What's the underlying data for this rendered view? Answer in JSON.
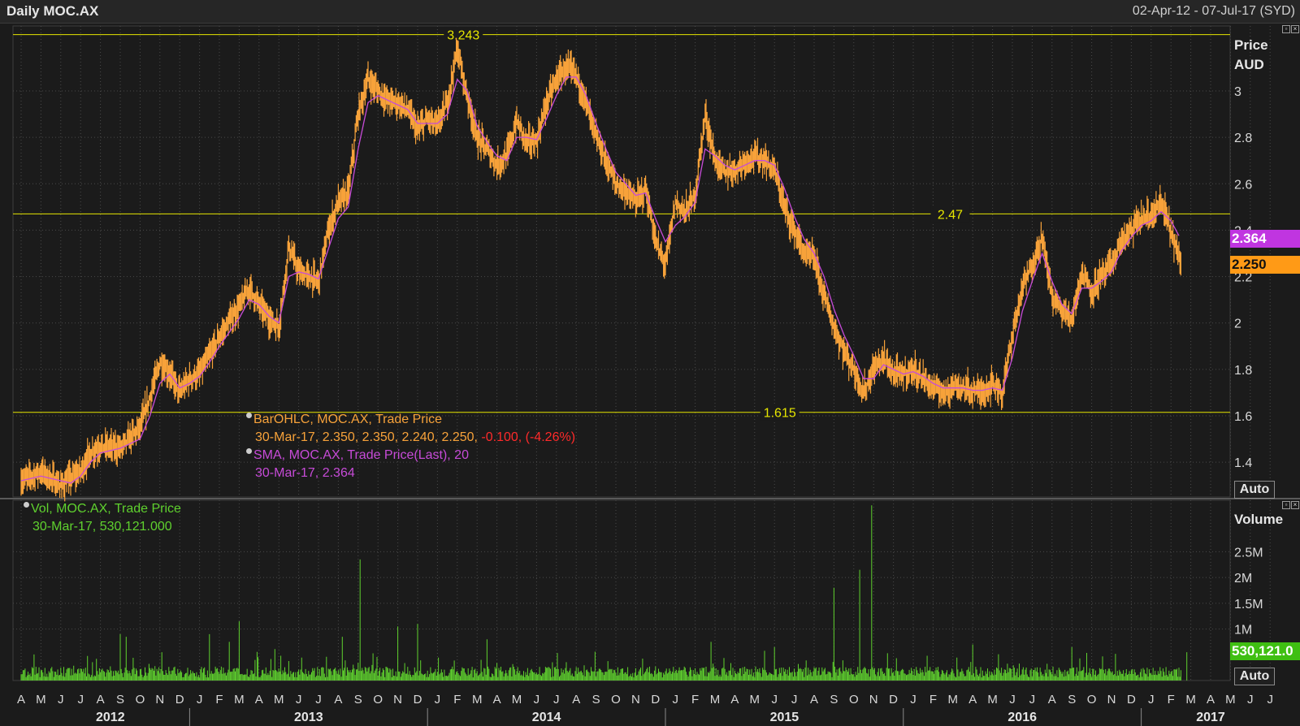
{
  "header": {
    "title": "Daily MOC.AX",
    "date_range": "02-Apr-12 - 07-Jul-17 (SYD)"
  },
  "price_panel": {
    "axis_title_1": "Price",
    "axis_title_2": "AUD",
    "auto_label": "Auto",
    "sma_tag": "2.364",
    "last_tag": "2.250",
    "hlines": [
      {
        "value": 3.243,
        "label": "3.243"
      },
      {
        "value": 2.47,
        "label": "2.47"
      },
      {
        "value": 1.615,
        "label": "1.615"
      }
    ],
    "legend": {
      "series1_name": "BarOHLC, MOC.AX, Trade Price",
      "series1_values": "30-Mar-17, 2.350, 2.350, 2.240, 2.250,",
      "series1_change": "-0.100, (-4.26%)",
      "series2_name": "SMA, MOC.AX, Trade Price(Last),  20",
      "series2_values": "30-Mar-17, 2.364"
    }
  },
  "volume_panel": {
    "axis_title": "Volume",
    "auto_label": "Auto",
    "last_tag": "530,121.0",
    "legend_name": "Vol, MOC.AX, Trade Price",
    "legend_values": "30-Mar-17, 530,121.000"
  },
  "colors": {
    "background": "#1b1b1b",
    "grid": "#4a4a4a",
    "price_bars": "#f7a23a",
    "sma": "#c74bd8",
    "volume": "#5fd12e",
    "hline": "#e6e600"
  },
  "chart_data": {
    "type": "line",
    "title": "Daily MOC.AX",
    "ylabel": "Price AUD",
    "ylim": [
      1.25,
      3.28
    ],
    "yticks": [
      1.4,
      1.6,
      1.8,
      2,
      2.2,
      2.4,
      2.6,
      2.8,
      3
    ],
    "volume_ylim": [
      0,
      3500000
    ],
    "volume_yticks": [
      {
        "value": 1000000,
        "label": "1M"
      },
      {
        "value": 1500000,
        "label": "1.5M"
      },
      {
        "value": 2000000,
        "label": "2M"
      },
      {
        "value": 2500000,
        "label": "2.5M"
      }
    ],
    "x_months": [
      "A",
      "M",
      "J",
      "J",
      "A",
      "S",
      "O",
      "N",
      "D",
      "J",
      "F",
      "M",
      "A",
      "M",
      "J",
      "J",
      "A",
      "S",
      "O",
      "N",
      "D",
      "J",
      "F",
      "M",
      "A",
      "M",
      "J",
      "J",
      "A",
      "S",
      "O",
      "N",
      "D",
      "J",
      "F",
      "M",
      "A",
      "M",
      "J",
      "J",
      "A",
      "S",
      "O",
      "N",
      "D",
      "J",
      "F",
      "M",
      "A",
      "M",
      "J",
      "J",
      "A",
      "S",
      "O",
      "N",
      "D",
      "J",
      "F",
      "M",
      "A",
      "M",
      "J",
      "J"
    ],
    "x_years": [
      {
        "label": "2012",
        "month_index": 4.5
      },
      {
        "label": "2013",
        "month_index": 14.5
      },
      {
        "label": "2014",
        "month_index": 26.5
      },
      {
        "label": "2015",
        "month_index": 38.5
      },
      {
        "label": "2016",
        "month_index": 50.5
      },
      {
        "label": "2017",
        "month_index": 60.0
      }
    ],
    "year_boundaries": [
      9,
      21,
      33,
      45,
      57
    ],
    "series": [
      {
        "name": "BarOHLC, MOC.AX, Trade Price",
        "kind": "ohlc",
        "points": [
          [
            0.0,
            1.32
          ],
          [
            1.0,
            1.36
          ],
          [
            2.0,
            1.3
          ],
          [
            2.5,
            1.33
          ],
          [
            3.0,
            1.36
          ],
          [
            3.5,
            1.44
          ],
          [
            4.0,
            1.47
          ],
          [
            5.0,
            1.46
          ],
          [
            6.0,
            1.55
          ],
          [
            6.5,
            1.68
          ],
          [
            7.0,
            1.83
          ],
          [
            7.5,
            1.78
          ],
          [
            8.0,
            1.7
          ],
          [
            8.5,
            1.76
          ],
          [
            9.0,
            1.78
          ],
          [
            9.5,
            1.86
          ],
          [
            10.0,
            1.94
          ],
          [
            11.0,
            2.07
          ],
          [
            11.5,
            2.15
          ],
          [
            12.0,
            2.08
          ],
          [
            12.5,
            2.02
          ],
          [
            13.0,
            1.98
          ],
          [
            13.5,
            2.33
          ],
          [
            14.0,
            2.22
          ],
          [
            14.5,
            2.2
          ],
          [
            15.0,
            2.18
          ],
          [
            15.5,
            2.4
          ],
          [
            16.0,
            2.52
          ],
          [
            16.5,
            2.56
          ],
          [
            17.0,
            2.9
          ],
          [
            17.5,
            3.05
          ],
          [
            18.0,
            3.0
          ],
          [
            18.5,
            2.96
          ],
          [
            19.0,
            2.95
          ],
          [
            19.5,
            2.92
          ],
          [
            20.0,
            2.83
          ],
          [
            20.5,
            2.88
          ],
          [
            21.0,
            2.85
          ],
          [
            21.5,
            2.95
          ],
          [
            22.0,
            3.18
          ],
          [
            22.5,
            2.98
          ],
          [
            23.0,
            2.8
          ],
          [
            23.5,
            2.75
          ],
          [
            24.0,
            2.68
          ],
          [
            24.5,
            2.72
          ],
          [
            25.0,
            2.87
          ],
          [
            25.5,
            2.78
          ],
          [
            26.0,
            2.78
          ],
          [
            26.5,
            2.95
          ],
          [
            27.0,
            3.05
          ],
          [
            27.5,
            3.1
          ],
          [
            28.0,
            3.07
          ],
          [
            28.5,
            2.95
          ],
          [
            29.0,
            2.8
          ],
          [
            29.5,
            2.7
          ],
          [
            30.0,
            2.6
          ],
          [
            30.5,
            2.57
          ],
          [
            31.0,
            2.52
          ],
          [
            31.5,
            2.58
          ],
          [
            32.0,
            2.35
          ],
          [
            32.5,
            2.25
          ],
          [
            33.0,
            2.52
          ],
          [
            33.5,
            2.48
          ],
          [
            34.0,
            2.55
          ],
          [
            34.5,
            2.9
          ],
          [
            35.0,
            2.7
          ],
          [
            35.5,
            2.65
          ],
          [
            36.0,
            2.66
          ],
          [
            36.5,
            2.7
          ],
          [
            37.0,
            2.72
          ],
          [
            37.5,
            2.7
          ],
          [
            38.0,
            2.66
          ],
          [
            38.5,
            2.5
          ],
          [
            39.0,
            2.4
          ],
          [
            39.5,
            2.3
          ],
          [
            40.0,
            2.28
          ],
          [
            40.5,
            2.12
          ],
          [
            41.0,
            1.98
          ],
          [
            41.5,
            1.88
          ],
          [
            42.0,
            1.8
          ],
          [
            42.5,
            1.7
          ],
          [
            43.0,
            1.8
          ],
          [
            43.5,
            1.85
          ],
          [
            44.0,
            1.78
          ],
          [
            44.5,
            1.78
          ],
          [
            45.0,
            1.8
          ],
          [
            45.5,
            1.76
          ],
          [
            46.0,
            1.72
          ],
          [
            46.5,
            1.7
          ],
          [
            47.0,
            1.73
          ],
          [
            47.5,
            1.72
          ],
          [
            48.0,
            1.71
          ],
          [
            48.5,
            1.7
          ],
          [
            49.0,
            1.74
          ],
          [
            49.5,
            1.7
          ],
          [
            50.0,
            1.95
          ],
          [
            50.5,
            2.15
          ],
          [
            51.0,
            2.25
          ],
          [
            51.5,
            2.37
          ],
          [
            52.0,
            2.12
          ],
          [
            52.5,
            2.05
          ],
          [
            53.0,
            2.02
          ],
          [
            53.5,
            2.22
          ],
          [
            54.0,
            2.14
          ],
          [
            54.5,
            2.2
          ],
          [
            55.0,
            2.25
          ],
          [
            55.5,
            2.35
          ],
          [
            56.0,
            2.4
          ],
          [
            56.5,
            2.45
          ],
          [
            57.0,
            2.46
          ],
          [
            57.5,
            2.52
          ],
          [
            58.0,
            2.4
          ],
          [
            58.5,
            2.25
          ]
        ]
      },
      {
        "name": "SMA, MOC.AX, Trade Price(Last),  20",
        "kind": "line",
        "points": [
          [
            0.0,
            1.32
          ],
          [
            1.0,
            1.34
          ],
          [
            2.0,
            1.32
          ],
          [
            2.5,
            1.31
          ],
          [
            3.0,
            1.34
          ],
          [
            3.5,
            1.4
          ],
          [
            4.0,
            1.44
          ],
          [
            5.0,
            1.46
          ],
          [
            6.0,
            1.5
          ],
          [
            6.5,
            1.6
          ],
          [
            7.0,
            1.74
          ],
          [
            7.5,
            1.78
          ],
          [
            8.0,
            1.72
          ],
          [
            8.5,
            1.74
          ],
          [
            9.0,
            1.77
          ],
          [
            9.5,
            1.83
          ],
          [
            10.0,
            1.9
          ],
          [
            11.0,
            2.02
          ],
          [
            11.5,
            2.1
          ],
          [
            12.0,
            2.08
          ],
          [
            12.5,
            2.03
          ],
          [
            13.0,
            2.0
          ],
          [
            13.5,
            2.2
          ],
          [
            14.0,
            2.22
          ],
          [
            14.5,
            2.21
          ],
          [
            15.0,
            2.19
          ],
          [
            15.5,
            2.32
          ],
          [
            16.0,
            2.45
          ],
          [
            16.5,
            2.5
          ],
          [
            17.0,
            2.75
          ],
          [
            17.5,
            2.95
          ],
          [
            18.0,
            2.98
          ],
          [
            18.5,
            2.96
          ],
          [
            19.0,
            2.94
          ],
          [
            19.5,
            2.92
          ],
          [
            20.0,
            2.86
          ],
          [
            20.5,
            2.86
          ],
          [
            21.0,
            2.86
          ],
          [
            21.5,
            2.9
          ],
          [
            22.0,
            3.05
          ],
          [
            22.5,
            3.0
          ],
          [
            23.0,
            2.85
          ],
          [
            23.5,
            2.78
          ],
          [
            24.0,
            2.72
          ],
          [
            24.5,
            2.7
          ],
          [
            25.0,
            2.8
          ],
          [
            25.5,
            2.8
          ],
          [
            26.0,
            2.79
          ],
          [
            26.5,
            2.88
          ],
          [
            27.0,
            2.98
          ],
          [
            27.5,
            3.06
          ],
          [
            28.0,
            3.06
          ],
          [
            28.5,
            2.98
          ],
          [
            29.0,
            2.86
          ],
          [
            29.5,
            2.75
          ],
          [
            30.0,
            2.65
          ],
          [
            30.5,
            2.6
          ],
          [
            31.0,
            2.55
          ],
          [
            31.5,
            2.56
          ],
          [
            32.0,
            2.45
          ],
          [
            32.5,
            2.35
          ],
          [
            33.0,
            2.42
          ],
          [
            33.5,
            2.46
          ],
          [
            34.0,
            2.52
          ],
          [
            34.5,
            2.75
          ],
          [
            35.0,
            2.72
          ],
          [
            35.5,
            2.68
          ],
          [
            36.0,
            2.66
          ],
          [
            36.5,
            2.68
          ],
          [
            37.0,
            2.7
          ],
          [
            37.5,
            2.7
          ],
          [
            38.0,
            2.68
          ],
          [
            38.5,
            2.58
          ],
          [
            39.0,
            2.46
          ],
          [
            39.5,
            2.36
          ],
          [
            40.0,
            2.3
          ],
          [
            40.5,
            2.2
          ],
          [
            41.0,
            2.06
          ],
          [
            41.5,
            1.95
          ],
          [
            42.0,
            1.86
          ],
          [
            42.5,
            1.76
          ],
          [
            43.0,
            1.76
          ],
          [
            43.5,
            1.82
          ],
          [
            44.0,
            1.8
          ],
          [
            44.5,
            1.78
          ],
          [
            45.0,
            1.79
          ],
          [
            45.5,
            1.77
          ],
          [
            46.0,
            1.74
          ],
          [
            46.5,
            1.72
          ],
          [
            47.0,
            1.72
          ],
          [
            47.5,
            1.72
          ],
          [
            48.0,
            1.71
          ],
          [
            48.5,
            1.71
          ],
          [
            49.0,
            1.72
          ],
          [
            49.5,
            1.71
          ],
          [
            50.0,
            1.85
          ],
          [
            50.5,
            2.05
          ],
          [
            51.0,
            2.18
          ],
          [
            51.5,
            2.3
          ],
          [
            52.0,
            2.18
          ],
          [
            52.5,
            2.08
          ],
          [
            53.0,
            2.04
          ],
          [
            53.5,
            2.15
          ],
          [
            54.0,
            2.15
          ],
          [
            54.5,
            2.18
          ],
          [
            55.0,
            2.22
          ],
          [
            55.5,
            2.31
          ],
          [
            56.0,
            2.37
          ],
          [
            56.5,
            2.42
          ],
          [
            57.0,
            2.44
          ],
          [
            57.5,
            2.48
          ],
          [
            58.0,
            2.44
          ],
          [
            58.5,
            2.36
          ]
        ]
      },
      {
        "name": "Vol, MOC.AX, Trade Price",
        "kind": "volume",
        "baseline": 150000,
        "spikes": [
          [
            5.0,
            900000
          ],
          [
            5.3,
            850000
          ],
          [
            9.5,
            900000
          ],
          [
            10.5,
            750000
          ],
          [
            11.0,
            1150000
          ],
          [
            16.2,
            850000
          ],
          [
            17.1,
            2350000
          ],
          [
            19.0,
            1050000
          ],
          [
            20.0,
            1100000
          ],
          [
            23.5,
            800000
          ],
          [
            34.8,
            750000
          ],
          [
            38.0,
            650000
          ],
          [
            41.0,
            1800000
          ],
          [
            42.3,
            2150000
          ],
          [
            42.9,
            3400000
          ],
          [
            48.0,
            700000
          ],
          [
            53.0,
            650000
          ],
          [
            58.8,
            550000
          ]
        ]
      }
    ]
  }
}
